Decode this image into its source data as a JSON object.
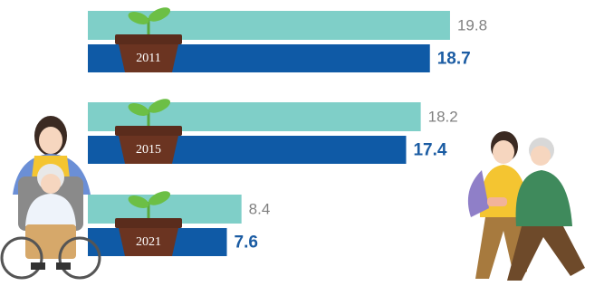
{
  "chart_data": {
    "type": "bar",
    "categories": [
      "2011",
      "2015",
      "2021"
    ],
    "series": [
      {
        "color": "#7fcfc8",
        "values": [
          19.8,
          18.2,
          8.4
        ]
      },
      {
        "color": "#0f5aa6",
        "values": [
          18.7,
          17.4,
          7.6
        ]
      }
    ]
  }
}
